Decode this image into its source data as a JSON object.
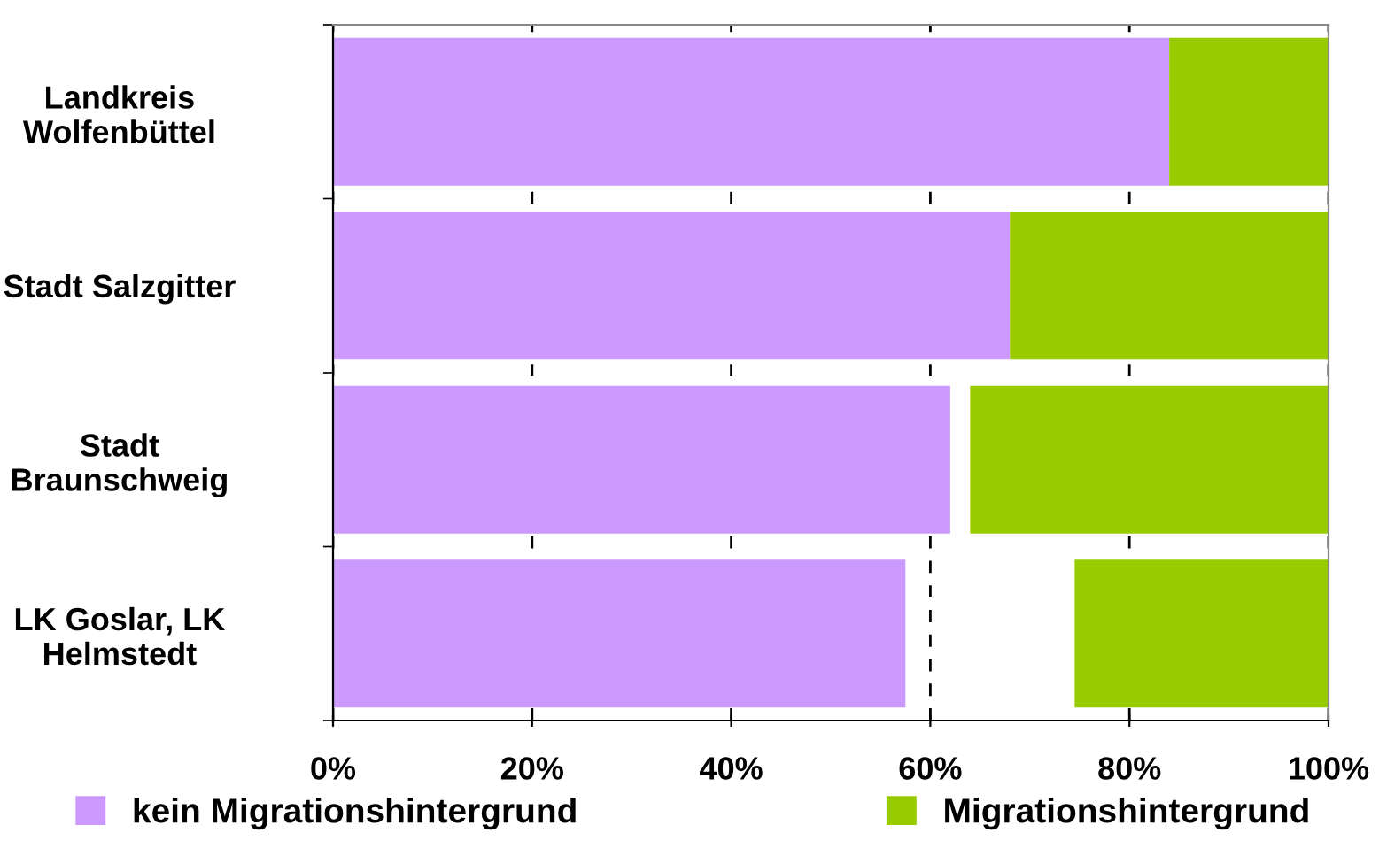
{
  "chart_data": {
    "type": "bar",
    "orientation": "horizontal",
    "categories": [
      "Landkreis\nWolfenbüttel",
      "Stadt Salzgitter",
      "Stadt\nBraunschweig",
      "LK Goslar, LK\nHelmstedt"
    ],
    "series": [
      {
        "name": "kein Migrationshintergrund",
        "color": "#cc99ff",
        "base": [
          0,
          0,
          0,
          0
        ],
        "values": [
          84,
          68,
          62,
          57.5
        ]
      },
      {
        "name": "Migrationshintergrund",
        "color": "#99cc00",
        "base": [
          84,
          68,
          64,
          74.5
        ],
        "values": [
          16,
          32,
          36,
          25.5
        ]
      }
    ],
    "xlim": [
      0,
      100
    ],
    "xticks": [
      {
        "value": 0,
        "label": "0%"
      },
      {
        "value": 20,
        "label": "20%"
      },
      {
        "value": 40,
        "label": "40%"
      },
      {
        "value": 60,
        "label": "60%"
      },
      {
        "value": 80,
        "label": "80%"
      },
      {
        "value": 100,
        "label": "100%"
      }
    ],
    "grid": "x",
    "line_style": "dashed",
    "legend": "bottom"
  }
}
